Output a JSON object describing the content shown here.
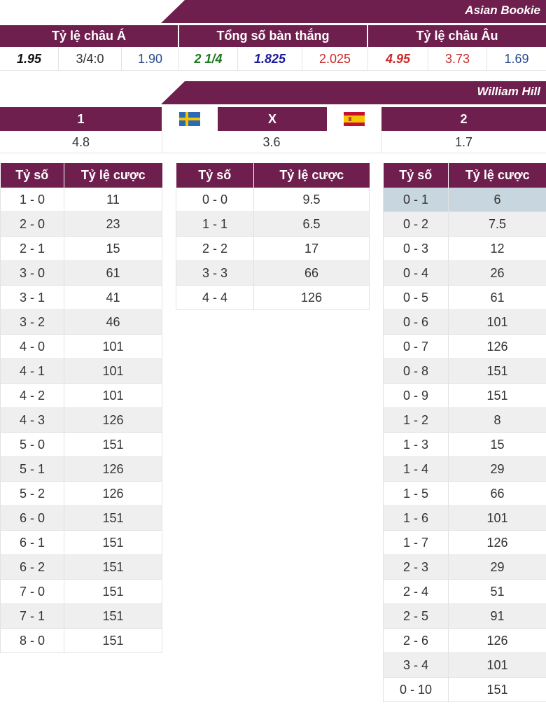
{
  "asian": {
    "bookie": "Asian Bookie",
    "headers": [
      "Tỷ lệ châu Á",
      "Tổng số bàn thắng",
      "Tỷ lệ châu Âu"
    ],
    "values": [
      "1.95",
      "3/4:0",
      "1.90",
      "2 1/4",
      "1.825",
      "2.025",
      "4.95",
      "3.73",
      "1.69"
    ],
    "colors": {
      "black": "#111111",
      "green": "#1e7a1e",
      "blue": "#1a1a9c",
      "red": "#cc2b2b",
      "slate": "#2a4b8d"
    }
  },
  "william": {
    "bookie": "William Hill",
    "headers": [
      "1",
      "X",
      "2"
    ],
    "values": [
      "4.8",
      "3.6",
      "1.7"
    ],
    "flags": [
      "sweden-flag-icon",
      "spain-flag-icon"
    ]
  },
  "tables": {
    "col_score": "Tỷ số",
    "col_odds": "Tỷ lệ cược",
    "home_win": [
      [
        "1 - 0",
        "11"
      ],
      [
        "2 - 0",
        "23"
      ],
      [
        "2 - 1",
        "15"
      ],
      [
        "3 - 0",
        "61"
      ],
      [
        "3 - 1",
        "41"
      ],
      [
        "3 - 2",
        "46"
      ],
      [
        "4 - 0",
        "101"
      ],
      [
        "4 - 1",
        "101"
      ],
      [
        "4 - 2",
        "101"
      ],
      [
        "4 - 3",
        "126"
      ],
      [
        "5 - 0",
        "151"
      ],
      [
        "5 - 1",
        "126"
      ],
      [
        "5 - 2",
        "126"
      ],
      [
        "6 - 0",
        "151"
      ],
      [
        "6 - 1",
        "151"
      ],
      [
        "6 - 2",
        "151"
      ],
      [
        "7 - 0",
        "151"
      ],
      [
        "7 - 1",
        "151"
      ],
      [
        "8 - 0",
        "151"
      ]
    ],
    "draw": [
      [
        "0 - 0",
        "9.5"
      ],
      [
        "1 - 1",
        "6.5"
      ],
      [
        "2 - 2",
        "17"
      ],
      [
        "3 - 3",
        "66"
      ],
      [
        "4 - 4",
        "126"
      ]
    ],
    "away_win": [
      [
        "0 - 1",
        "6"
      ],
      [
        "0 - 2",
        "7.5"
      ],
      [
        "0 - 3",
        "12"
      ],
      [
        "0 - 4",
        "26"
      ],
      [
        "0 - 5",
        "61"
      ],
      [
        "0 - 6",
        "101"
      ],
      [
        "0 - 7",
        "126"
      ],
      [
        "0 - 8",
        "151"
      ],
      [
        "0 - 9",
        "151"
      ],
      [
        "1 - 2",
        "8"
      ],
      [
        "1 - 3",
        "15"
      ],
      [
        "1 - 4",
        "29"
      ],
      [
        "1 - 5",
        "66"
      ],
      [
        "1 - 6",
        "101"
      ],
      [
        "1 - 7",
        "126"
      ],
      [
        "2 - 3",
        "29"
      ],
      [
        "2 - 4",
        "51"
      ],
      [
        "2 - 5",
        "91"
      ],
      [
        "2 - 6",
        "126"
      ],
      [
        "3 - 4",
        "101"
      ],
      [
        "0 - 10",
        "151"
      ]
    ],
    "highlight_color": "#c8d6df",
    "stripe_color": "#efefef"
  },
  "theme": {
    "header_bg": "#6e1f4e",
    "header_text": "#ffffff"
  }
}
